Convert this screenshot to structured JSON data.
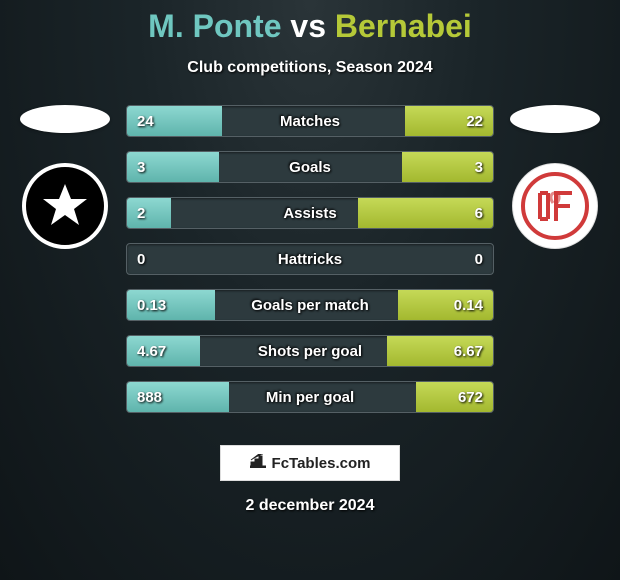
{
  "title": {
    "player1": "M. Ponte",
    "vs": "vs",
    "player2": "Bernabei",
    "color_player1": "#6fc7c0",
    "color_vs": "#ffffff",
    "color_player2": "#b5c938"
  },
  "subtitle": "Club competitions, Season 2024",
  "date": "2 december 2024",
  "branding": {
    "text": "FcTables.com"
  },
  "colors": {
    "bar_left_gradient": [
      "#8dd8d1",
      "#5fb4ac"
    ],
    "bar_right_gradient": [
      "#c5d957",
      "#a3b82f"
    ],
    "bar_bg": "#2d3a3e",
    "bar_border": "#556065",
    "page_bg_center": "#2a3438",
    "page_bg_outer": "#0f1518",
    "text": "#ffffff",
    "title_fontsize": 32,
    "subtitle_fontsize": 16,
    "bar_label_fontsize": 15,
    "date_fontsize": 16
  },
  "stats": [
    {
      "label": "Matches",
      "left_display": "24",
      "right_display": "22",
      "left_pct": 26,
      "right_pct": 24
    },
    {
      "label": "Goals",
      "left_display": "3",
      "right_display": "3",
      "left_pct": 25,
      "right_pct": 25
    },
    {
      "label": "Assists",
      "left_display": "2",
      "right_display": "6",
      "left_pct": 12,
      "right_pct": 37
    },
    {
      "label": "Hattricks",
      "left_display": "0",
      "right_display": "0",
      "left_pct": 0,
      "right_pct": 0
    },
    {
      "label": "Goals per match",
      "left_display": "0.13",
      "right_display": "0.14",
      "left_pct": 24,
      "right_pct": 26
    },
    {
      "label": "Shots per goal",
      "left_display": "4.67",
      "right_display": "6.67",
      "left_pct": 20,
      "right_pct": 29
    },
    {
      "label": "Min per goal",
      "left_display": "888",
      "right_display": "672",
      "left_pct": 28,
      "right_pct": 21
    }
  ],
  "crests": {
    "left": {
      "name": "botafogo",
      "bg": "#000000",
      "border": "#ffffff"
    },
    "right": {
      "name": "internacional",
      "bg": "#ffffff",
      "accent": "#d03a3a"
    }
  }
}
